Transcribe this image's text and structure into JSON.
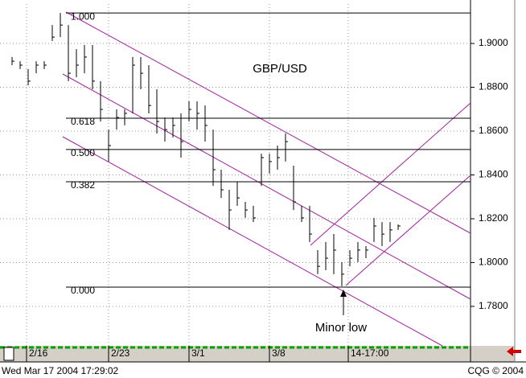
{
  "chart_data": {
    "type": "hlc",
    "title": "GBP/USD",
    "annotation": "Minor low",
    "status": "Wed Mar 17 2004 17:29:02",
    "vendor": "CQG © 2004",
    "color": "#000000",
    "level_color": "#000000",
    "grid": true,
    "x": [
      2,
      4,
      6,
      8,
      10,
      12,
      14,
      16,
      18,
      20,
      22,
      24,
      26,
      28,
      30,
      32,
      34,
      36,
      38,
      40,
      42,
      44,
      46,
      48,
      50,
      52,
      54,
      56,
      58,
      60,
      62,
      64,
      66,
      68,
      70,
      72,
      74,
      76,
      78,
      80,
      82,
      84,
      86,
      88,
      90,
      92,
      94,
      96,
      98
    ],
    "high": [
      1.8938,
      1.8919,
      1.8883,
      1.8919,
      1.8919,
      1.9084,
      1.9139,
      1.9084,
      1.8974,
      1.8993,
      1.8993,
      1.8828,
      1.8607,
      1.8699,
      1.8699,
      1.8938,
      1.8938,
      1.8901,
      1.8791,
      1.8662,
      1.8662,
      1.8681,
      1.8736,
      1.8736,
      1.8717,
      1.8607,
      1.8424,
      1.8332,
      1.8369,
      1.8277,
      1.8259,
      1.8497,
      1.8497,
      1.8534,
      1.8589,
      1.8442,
      1.8259,
      1.8259,
      1.8057,
      1.8094,
      1.813,
      1.8002,
      1.8057,
      1.8094,
      1.8075,
      1.8204,
      1.8185,
      1.8185,
      1.8174
    ],
    "low": [
      1.8901,
      1.8883,
      1.8809,
      1.8864,
      1.8883,
      1.9011,
      1.9029,
      1.8828,
      1.8846,
      1.8864,
      1.8791,
      1.8644,
      1.8461,
      1.8607,
      1.8626,
      1.8681,
      1.8791,
      1.8681,
      1.8589,
      1.8552,
      1.8571,
      1.8479,
      1.8644,
      1.8607,
      1.8552,
      1.835,
      1.8295,
      1.8149,
      1.8259,
      1.8204,
      1.8185,
      1.835,
      1.8406,
      1.8424,
      1.8461,
      1.824,
      1.8185,
      1.8094,
      1.7947,
      1.7965,
      1.7947,
      1.7892,
      1.7983,
      1.8002,
      1.802,
      1.8094,
      1.8075,
      1.8094,
      1.8149
    ],
    "close": [
      1.8919,
      1.8901,
      1.8828,
      1.8901,
      1.8901,
      1.9029,
      1.9084,
      1.8864,
      1.8901,
      1.8938,
      1.8828,
      1.8699,
      1.8534,
      1.8662,
      1.8681,
      1.8901,
      1.8864,
      1.8717,
      1.8644,
      1.8607,
      1.8626,
      1.8552,
      1.8699,
      1.8681,
      1.8626,
      1.8424,
      1.8332,
      1.824,
      1.8295,
      1.824,
      1.8204,
      1.8479,
      1.8461,
      1.8479,
      1.8552,
      1.8277,
      1.8204,
      1.813,
      1.7983,
      1.802,
      1.8057,
      1.7947,
      1.802,
      1.8057,
      1.8057,
      1.8167,
      1.813,
      1.8149,
      1.8167
    ],
    "levels": [
      {
        "label": "1.000",
        "value": 1.9139
      },
      {
        "label": "0.618",
        "value": 1.8659
      },
      {
        "label": "0.500",
        "value": 1.8516
      },
      {
        "label": "0.382",
        "value": 1.8369
      },
      {
        "label": "0.000",
        "value": 1.7888
      }
    ],
    "xlim": [
      -1,
      116
    ],
    "ylim": [
      1.762,
      1.918
    ],
    "xticks": [
      {
        "value": 5.6,
        "label": "2/16"
      },
      {
        "value": 26,
        "label": "2/23"
      },
      {
        "value": 46,
        "label": "3/1"
      },
      {
        "value": 66,
        "label": "3/8"
      },
      {
        "value": 85.6,
        "label": "14-17:00"
      }
    ],
    "yticks": [
      {
        "value": 1.9,
        "label": "1.9000"
      },
      {
        "value": 1.88,
        "label": "1.8800"
      },
      {
        "value": 1.86,
        "label": "1.8600"
      },
      {
        "value": 1.84,
        "label": "1.8400"
      },
      {
        "value": 1.82,
        "label": "1.8200"
      },
      {
        "value": 1.8,
        "label": "1.8000"
      },
      {
        "value": 1.78,
        "label": "1.7800"
      }
    ]
  }
}
